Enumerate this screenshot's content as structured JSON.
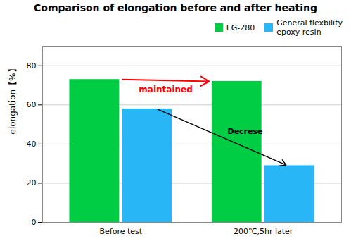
{
  "chart_data": {
    "type": "bar",
    "title": "Comparison of elongation before and after heating",
    "ylabel": "elongation【%】",
    "categories": [
      "Before test",
      "200℃,5hr later"
    ],
    "series": [
      {
        "name": "EG-280",
        "color": "#00cc44",
        "values": [
          73,
          72
        ]
      },
      {
        "name": "General flexbility\nepoxy resin",
        "color": "#29b6f6",
        "values": [
          58,
          29
        ]
      }
    ],
    "ylim": [
      0,
      90
    ],
    "yticks": [
      0,
      20,
      40,
      60,
      80
    ],
    "grid": true,
    "legend": "upper right",
    "annotations": [
      {
        "text": "maintained",
        "color": "red"
      },
      {
        "text": "Decrese",
        "color": "black"
      }
    ]
  }
}
